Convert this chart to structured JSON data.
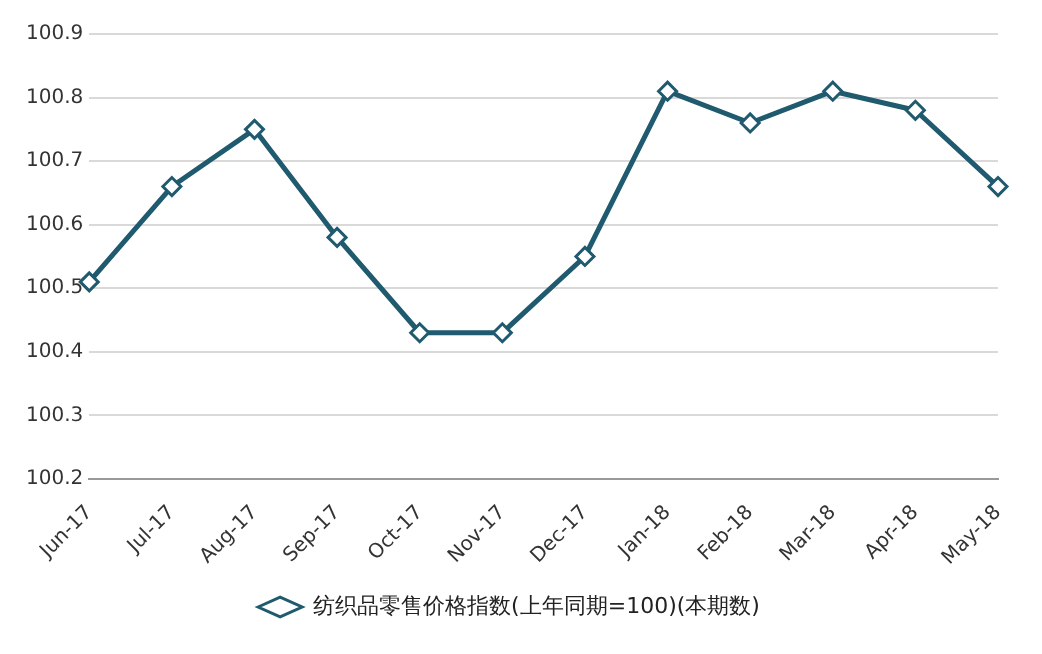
{
  "chart_data": {
    "type": "line",
    "categories": [
      "Jun-17",
      "Jul-17",
      "Aug-17",
      "Sep-17",
      "Oct-17",
      "Nov-17",
      "Dec-17",
      "Jan-18",
      "Feb-18",
      "Mar-18",
      "Apr-18",
      "May-18"
    ],
    "series": [
      {
        "name": "纺织品零售价格指数(上年同期=100)(本期数)",
        "color": "#1f5a6e",
        "values": [
          100.51,
          100.66,
          100.75,
          100.58,
          100.43,
          100.43,
          100.55,
          100.81,
          100.76,
          100.81,
          100.78,
          100.66
        ]
      }
    ],
    "ylim": [
      100.2,
      100.9
    ],
    "yticks": [
      100.2,
      100.3,
      100.4,
      100.5,
      100.6,
      100.7,
      100.8,
      100.9
    ],
    "grid": "y",
    "legend": "bottom",
    "marker": "diamond",
    "line_style": "solid"
  }
}
